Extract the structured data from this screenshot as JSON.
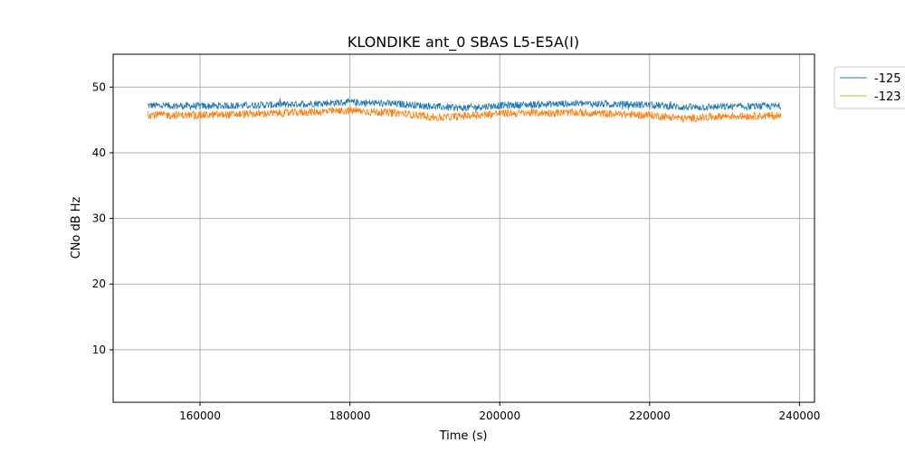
{
  "chart_data": {
    "type": "line",
    "title": "KLONDIKE ant_0 SBAS L5-E5A(I)",
    "xlabel": "Time (s)",
    "ylabel": "CNo dB Hz",
    "xlim": [
      148400,
      242000
    ],
    "ylim": [
      2,
      55
    ],
    "xticks": [
      160000,
      180000,
      200000,
      220000,
      240000
    ],
    "yticks": [
      10,
      20,
      30,
      40,
      50
    ],
    "grid": true,
    "legend_position": "outside-top-right",
    "series": [
      {
        "name": "-125",
        "color": "#1f77b4",
        "x": [
          153000,
          160000,
          170000,
          180000,
          187000,
          192000,
          195000,
          200000,
          210000,
          220000,
          225000,
          230000,
          237500
        ],
        "y": [
          47.2,
          47.1,
          47.3,
          47.7,
          47.4,
          47.0,
          46.8,
          47.2,
          47.5,
          47.3,
          46.9,
          47.0,
          47.1
        ],
        "noise": 0.55
      },
      {
        "name": "-123",
        "color": "#ff7f0e",
        "legend_color": "#bcbd22",
        "x": [
          153000,
          160000,
          170000,
          180000,
          187000,
          192000,
          195000,
          200000,
          210000,
          220000,
          225000,
          230000,
          237500
        ],
        "y": [
          45.8,
          45.7,
          46.0,
          46.4,
          46.0,
          45.3,
          45.6,
          46.0,
          46.1,
          45.7,
          45.2,
          45.6,
          45.6
        ],
        "noise": 0.6
      }
    ]
  }
}
